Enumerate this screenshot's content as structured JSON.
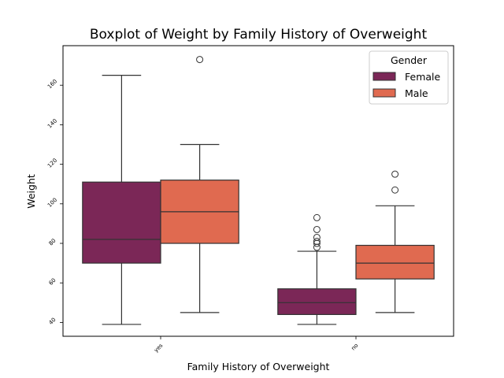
{
  "chart_data": {
    "type": "box",
    "title": "Boxplot of Weight by Family History of Overweight",
    "xlabel": "Family History of Overweight",
    "ylabel": "Weight",
    "ylim": [
      33,
      180
    ],
    "yticks": [
      40,
      60,
      80,
      100,
      120,
      140,
      160
    ],
    "ytick_labels": [
      "40",
      "60",
      "80",
      "100",
      "120",
      "140",
      "160"
    ],
    "categories": [
      "yes",
      "no"
    ],
    "legend": {
      "title": "Gender",
      "position": "top-right"
    },
    "grid": false,
    "series": [
      {
        "name": "Female",
        "color": "#7b2757",
        "boxes": [
          {
            "category": "yes",
            "whisker_low": 39,
            "q1": 70,
            "median": 82,
            "q3": 111,
            "whisker_high": 165,
            "outliers": []
          },
          {
            "category": "no",
            "whisker_low": 39,
            "q1": 44,
            "median": 50,
            "q3": 57,
            "whisker_high": 76,
            "outliers": [
              78,
              80,
              81,
              83,
              87,
              93
            ]
          }
        ]
      },
      {
        "name": "Male",
        "color": "#e06a50",
        "boxes": [
          {
            "category": "yes",
            "whisker_low": 45,
            "q1": 80,
            "median": 96,
            "q3": 112,
            "whisker_high": 130,
            "outliers": [
              173
            ]
          },
          {
            "category": "no",
            "whisker_low": 45,
            "q1": 62,
            "median": 70,
            "q3": 79,
            "whisker_high": 99,
            "outliers": [
              107,
              115
            ]
          }
        ]
      }
    ]
  }
}
